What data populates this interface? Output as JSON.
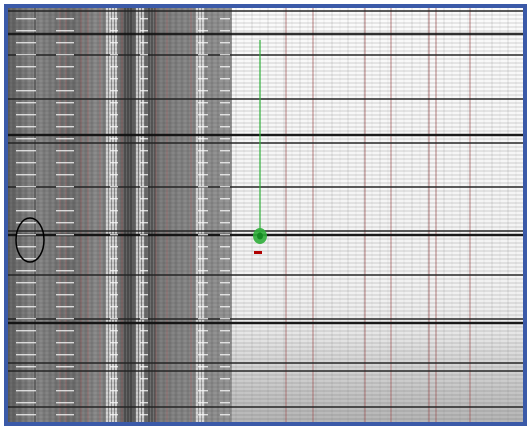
{
  "image": {
    "alt": "",
    "frame_color": "#3b5aa8",
    "left_band_color": "#7c7c7c",
    "right_bg_color": "#f1f1f1",
    "red_line_color": "#a65c5c",
    "green_mark_color": "#2fae3a",
    "red_mark_color": "#b00000",
    "ellipse_color": "#000000"
  }
}
